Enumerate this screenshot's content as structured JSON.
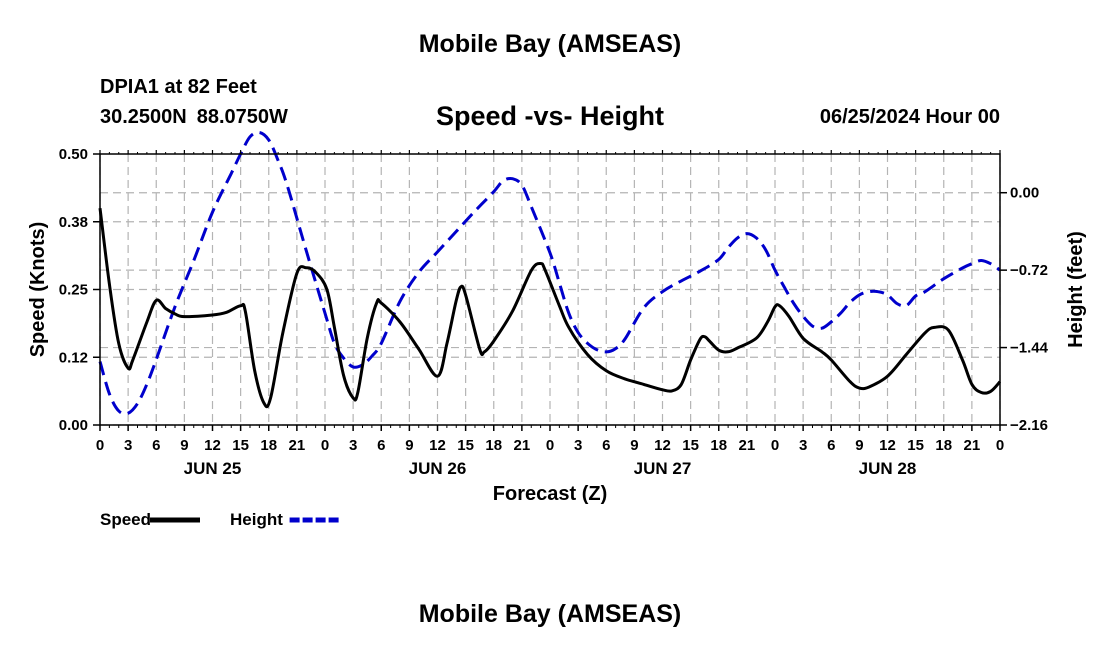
{
  "chart_data": {
    "type": "line",
    "title": "Mobile Bay (AMSEAS)",
    "bottom_title": "Mobile Bay (AMSEAS)",
    "station": "DPIA1 at 82 Feet",
    "latitude": "30.2500N",
    "longitude": "88.0750W",
    "subtitle": "Speed -vs- Height",
    "run_time": "06/25/2024 Hour 00",
    "xlabel": "Forecast (Z)",
    "ylabel_left": "Speed (Knots)",
    "ylabel_right": "Height (feet)",
    "x_range_hours": [
      0,
      96
    ],
    "x_tick_step_hours": 3,
    "x_tick_labels": [
      "0",
      "3",
      "6",
      "9",
      "12",
      "15",
      "18",
      "21",
      "0",
      "3",
      "6",
      "9",
      "12",
      "15",
      "18",
      "21",
      "0",
      "3",
      "6",
      "9",
      "12",
      "15",
      "18",
      "21",
      "0",
      "3",
      "6",
      "9",
      "12",
      "15",
      "18",
      "21",
      "0"
    ],
    "day_labels": [
      {
        "label": "JUN 25",
        "hour": 12
      },
      {
        "label": "JUN 26",
        "hour": 36
      },
      {
        "label": "JUN 27",
        "hour": 60
      },
      {
        "label": "JUN 28",
        "hour": 84
      }
    ],
    "y_left": {
      "range": [
        0,
        0.5
      ],
      "tick_values": [
        0,
        0.125,
        0.25,
        0.375,
        0.5
      ],
      "tick_labels": [
        "0.00",
        "0.12",
        "0.25",
        "0.38",
        "0.50"
      ]
    },
    "y_right": {
      "range": [
        -2.16,
        0.36
      ],
      "tick_values": [
        -2.16,
        -1.44,
        -0.72,
        0.0
      ],
      "tick_labels": [
        "-2.16",
        "-1.44",
        "-0.72",
        "0.00"
      ]
    },
    "grid": true,
    "legend": [
      {
        "name": "Speed",
        "color": "#000000",
        "style": "solid"
      },
      {
        "name": "Height",
        "color": "#0000cc",
        "style": "dashed"
      }
    ],
    "series": [
      {
        "name": "Speed",
        "axis": "left",
        "color": "#000000",
        "style": "solid",
        "points": [
          [
            0,
            0.4
          ],
          [
            1,
            0.26
          ],
          [
            2,
            0.15
          ],
          [
            3,
            0.105
          ],
          [
            3.5,
            0.12
          ],
          [
            5,
            0.19
          ],
          [
            6,
            0.23
          ],
          [
            7,
            0.215
          ],
          [
            8,
            0.205
          ],
          [
            9,
            0.2
          ],
          [
            12,
            0.203
          ],
          [
            13.5,
            0.208
          ],
          [
            15,
            0.22
          ],
          [
            15.5,
            0.21
          ],
          [
            16.5,
            0.1
          ],
          [
            17.5,
            0.04
          ],
          [
            18.2,
            0.05
          ],
          [
            19.5,
            0.17
          ],
          [
            21,
            0.28
          ],
          [
            22,
            0.29
          ],
          [
            23,
            0.282
          ],
          [
            24.2,
            0.25
          ],
          [
            25,
            0.18
          ],
          [
            26,
            0.09
          ],
          [
            27,
            0.05
          ],
          [
            27.5,
            0.06
          ],
          [
            28.5,
            0.16
          ],
          [
            29.5,
            0.225
          ],
          [
            30,
            0.225
          ],
          [
            32,
            0.19
          ],
          [
            34,
            0.14
          ],
          [
            36,
            0.09
          ],
          [
            37,
            0.15
          ],
          [
            38,
            0.23
          ],
          [
            38.5,
            0.255
          ],
          [
            39,
            0.24
          ],
          [
            40.5,
            0.14
          ],
          [
            41,
            0.135
          ],
          [
            42,
            0.155
          ],
          [
            44,
            0.21
          ],
          [
            46,
            0.285
          ],
          [
            47,
            0.298
          ],
          [
            47.5,
            0.285
          ],
          [
            49,
            0.22
          ],
          [
            50,
            0.18
          ],
          [
            52,
            0.13
          ],
          [
            54,
            0.1
          ],
          [
            56,
            0.085
          ],
          [
            58,
            0.075
          ],
          [
            60,
            0.065
          ],
          [
            61,
            0.063
          ],
          [
            62,
            0.075
          ],
          [
            63,
            0.12
          ],
          [
            64,
            0.158
          ],
          [
            64.5,
            0.163
          ],
          [
            65,
            0.155
          ],
          [
            66,
            0.138
          ],
          [
            67,
            0.135
          ],
          [
            68,
            0.142
          ],
          [
            70,
            0.16
          ],
          [
            71.2,
            0.19
          ],
          [
            72,
            0.218
          ],
          [
            72.5,
            0.22
          ],
          [
            73.5,
            0.2
          ],
          [
            75,
            0.16
          ],
          [
            77,
            0.135
          ],
          [
            78,
            0.12
          ],
          [
            80,
            0.08
          ],
          [
            81,
            0.068
          ],
          [
            82,
            0.07
          ],
          [
            84,
            0.09
          ],
          [
            86,
            0.13
          ],
          [
            88,
            0.17
          ],
          [
            89,
            0.18
          ],
          [
            90.5,
            0.175
          ],
          [
            92,
            0.12
          ],
          [
            93,
            0.075
          ],
          [
            94,
            0.06
          ],
          [
            95,
            0.062
          ],
          [
            96,
            0.08
          ]
        ]
      },
      {
        "name": "Height",
        "axis": "right",
        "color": "#0000cc",
        "style": "dashed",
        "points": [
          [
            0,
            -1.57
          ],
          [
            1,
            -1.87
          ],
          [
            2,
            -2.03
          ],
          [
            3,
            -2.05
          ],
          [
            4,
            -1.96
          ],
          [
            5,
            -1.78
          ],
          [
            6,
            -1.55
          ],
          [
            8,
            -1.06
          ],
          [
            10,
            -0.63
          ],
          [
            12,
            -0.18
          ],
          [
            14,
            0.18
          ],
          [
            15,
            0.36
          ],
          [
            16,
            0.52
          ],
          [
            17,
            0.56
          ],
          [
            18,
            0.49
          ],
          [
            19,
            0.3
          ],
          [
            20,
            0.06
          ],
          [
            22,
            -0.54
          ],
          [
            24,
            -1.12
          ],
          [
            25,
            -1.4
          ],
          [
            26,
            -1.54
          ],
          [
            27,
            -1.62
          ],
          [
            28,
            -1.6
          ],
          [
            29,
            -1.52
          ],
          [
            30,
            -1.4
          ],
          [
            32,
            -1.01
          ],
          [
            34,
            -0.74
          ],
          [
            36,
            -0.55
          ],
          [
            38,
            -0.36
          ],
          [
            40,
            -0.17
          ],
          [
            42,
            0.01
          ],
          [
            43,
            0.11
          ],
          [
            44,
            0.13
          ],
          [
            45,
            0.07
          ],
          [
            46,
            -0.13
          ],
          [
            48,
            -0.56
          ],
          [
            49,
            -0.84
          ],
          [
            50,
            -1.12
          ],
          [
            51,
            -1.3
          ],
          [
            52,
            -1.4
          ],
          [
            53,
            -1.46
          ],
          [
            54,
            -1.48
          ],
          [
            55,
            -1.45
          ],
          [
            56,
            -1.36
          ],
          [
            58,
            -1.07
          ],
          [
            60,
            -0.92
          ],
          [
            62,
            -0.82
          ],
          [
            64,
            -0.73
          ],
          [
            66,
            -0.62
          ],
          [
            67,
            -0.51
          ],
          [
            68,
            -0.42
          ],
          [
            69,
            -0.38
          ],
          [
            70,
            -0.42
          ],
          [
            71,
            -0.53
          ],
          [
            72,
            -0.72
          ],
          [
            73,
            -0.88
          ],
          [
            74,
            -1.03
          ],
          [
            75,
            -1.15
          ],
          [
            76,
            -1.24
          ],
          [
            77,
            -1.26
          ],
          [
            78,
            -1.2
          ],
          [
            79,
            -1.12
          ],
          [
            80,
            -1.02
          ],
          [
            81,
            -0.95
          ],
          [
            82,
            -0.92
          ],
          [
            83,
            -0.92
          ],
          [
            84,
            -0.95
          ],
          [
            85,
            -1.03
          ],
          [
            86,
            -1.05
          ],
          [
            87,
            -0.96
          ],
          [
            88,
            -0.92
          ],
          [
            90,
            -0.8
          ],
          [
            92,
            -0.7
          ],
          [
            93,
            -0.66
          ],
          [
            94,
            -0.63
          ],
          [
            95,
            -0.66
          ],
          [
            96,
            -0.72
          ]
        ]
      }
    ]
  }
}
